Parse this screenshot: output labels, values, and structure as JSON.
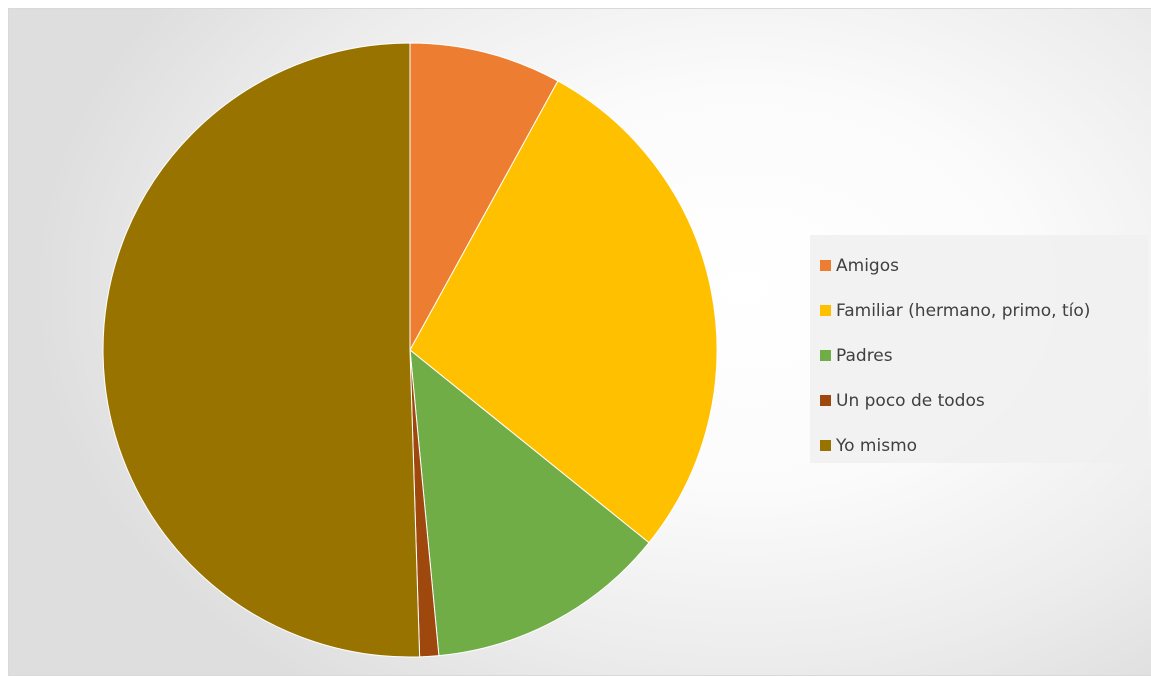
{
  "chart_data": {
    "type": "pie",
    "title": "",
    "categories": [
      "Amigos",
      "Familiar (hermano, primo, tío)",
      "Padres",
      "Un poco de todos",
      "Yo mismo"
    ],
    "values": [
      8.0,
      27.8,
      12.7,
      1.0,
      50.5
    ],
    "colors": [
      "#ED7D31",
      "#FFC000",
      "#70AD47",
      "#9E480E",
      "#997300"
    ],
    "start_angle_deg": 0,
    "direction": "clockwise",
    "legend_position": "right"
  }
}
